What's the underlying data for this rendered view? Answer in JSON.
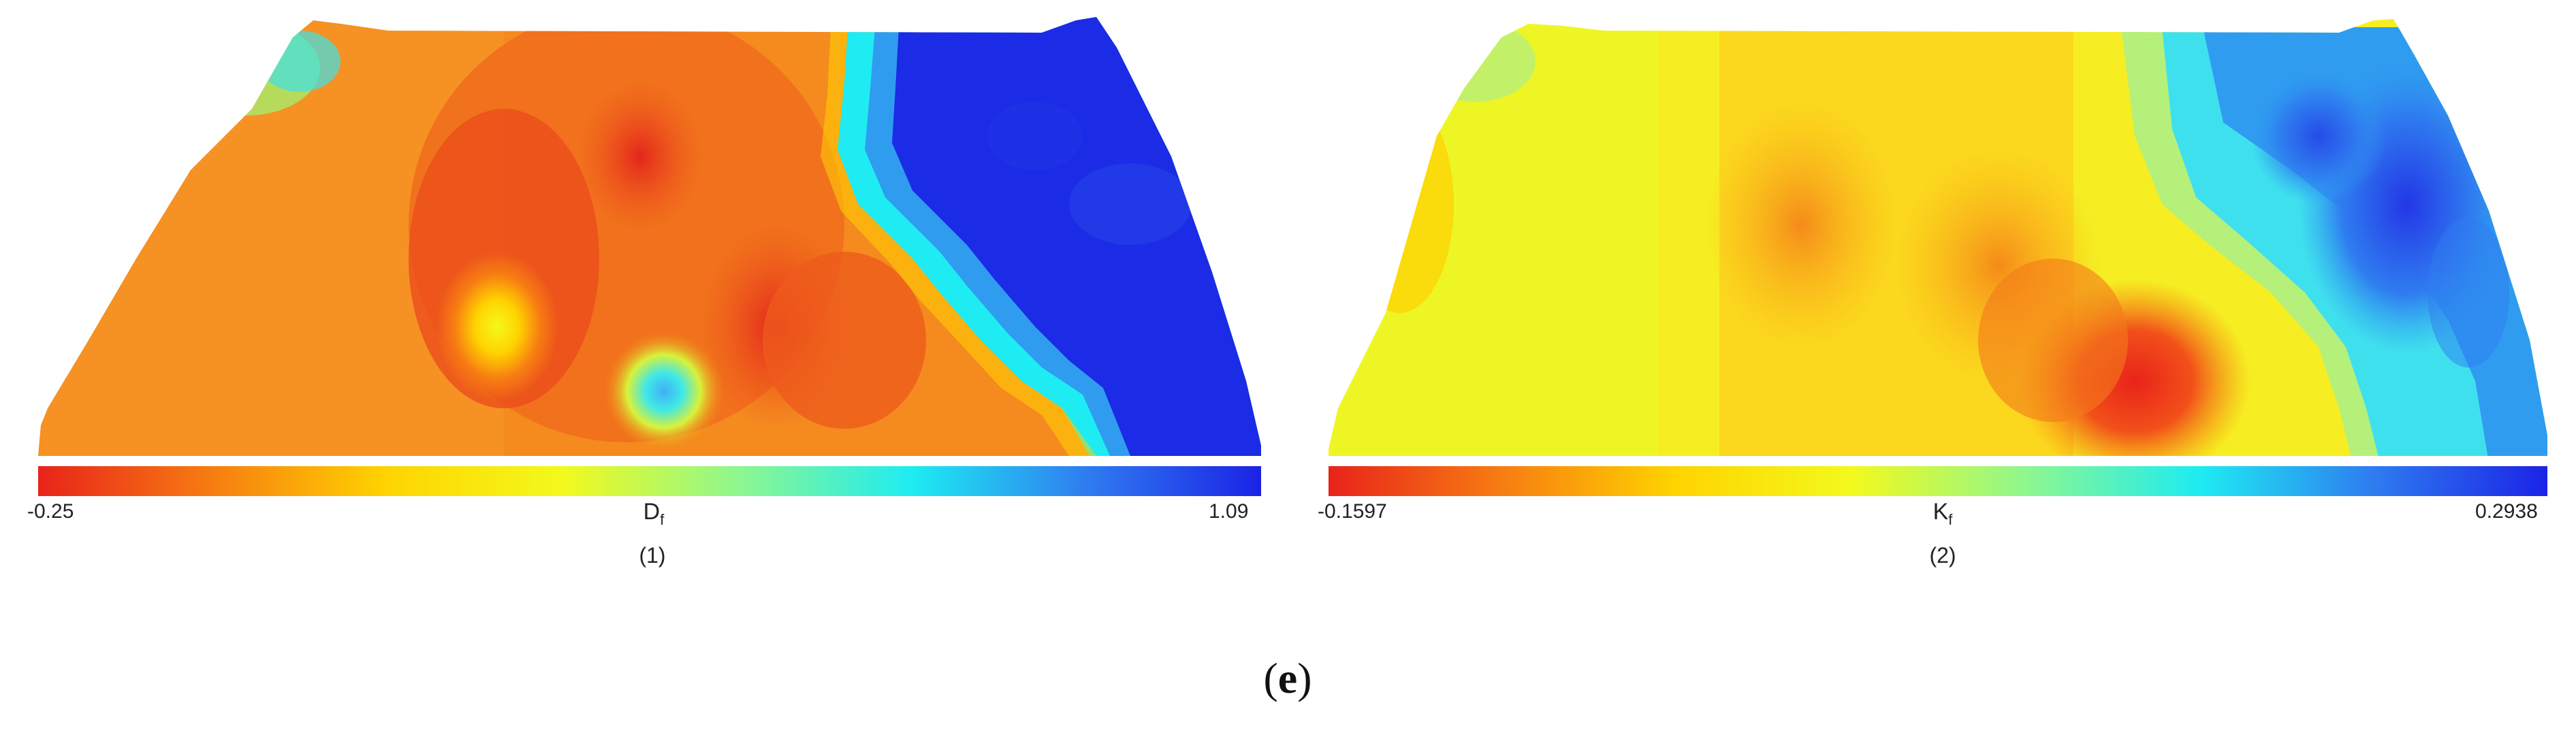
{
  "panel1": {
    "variable": "D",
    "variable_sub": "f",
    "min_label": "-0.25",
    "max_label": "1.09",
    "index_label": "(1)",
    "colormap": [
      "#e8231a",
      "#f77d12",
      "#ffd400",
      "#f3f91c",
      "#8ff78e",
      "#1eecf2",
      "#2f7cf0",
      "#1b23e6"
    ]
  },
  "panel2": {
    "variable": "K",
    "variable_sub": "f",
    "min_label": "-0.1597",
    "max_label": "0.2938",
    "index_label": "(2)",
    "colormap": [
      "#e8231a",
      "#f77d12",
      "#ffd400",
      "#f3f91c",
      "#8ff78e",
      "#1eecf2",
      "#2f7cf0",
      "#1b23e6"
    ]
  },
  "caption": {
    "open": "(",
    "letter": "e",
    "close": ")"
  }
}
